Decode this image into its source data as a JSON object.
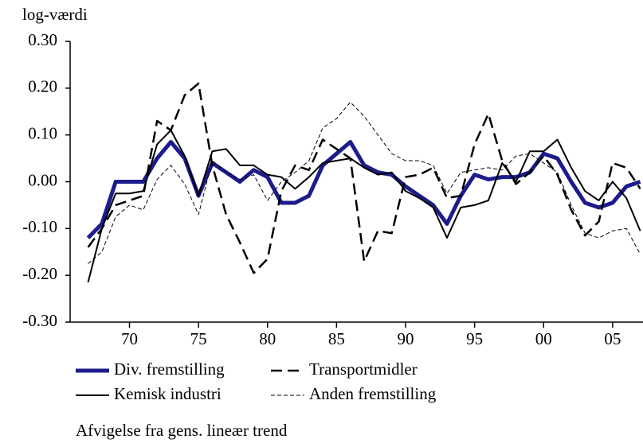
{
  "chart_data": {
    "type": "line",
    "y_label": "log-værdi",
    "note": "Afvigelse fra gens. lineær trend",
    "x": [
      1967,
      1968,
      1969,
      1970,
      1971,
      1972,
      1973,
      1974,
      1975,
      1976,
      1977,
      1978,
      1979,
      1980,
      1981,
      1982,
      1983,
      1984,
      1985,
      1986,
      1987,
      1988,
      1989,
      1990,
      1991,
      1992,
      1993,
      1994,
      1995,
      1996,
      1997,
      1998,
      1999,
      2000,
      2001,
      2002,
      2003,
      2004,
      2005,
      2006,
      2007
    ],
    "xlim": [
      1965.7,
      2007.2
    ],
    "xticks": [
      {
        "value": 1970,
        "label": "70"
      },
      {
        "value": 1975,
        "label": "75"
      },
      {
        "value": 1980,
        "label": "80"
      },
      {
        "value": 1985,
        "label": "85"
      },
      {
        "value": 1990,
        "label": "90"
      },
      {
        "value": 1995,
        "label": "95"
      },
      {
        "value": 2000,
        "label": "00"
      },
      {
        "value": 2005,
        "label": "05"
      }
    ],
    "ylim": [
      -0.3,
      0.3
    ],
    "yticks": [
      {
        "value": -0.3,
        "label": "-0.30"
      },
      {
        "value": -0.2,
        "label": "-0.20"
      },
      {
        "value": -0.1,
        "label": "-0.10"
      },
      {
        "value": 0,
        "label": "0.00"
      },
      {
        "value": 0.1,
        "label": "0.10"
      },
      {
        "value": 0.2,
        "label": "0.20"
      },
      {
        "value": 0.3,
        "label": "0.30"
      }
    ],
    "series": [
      {
        "name": "Div. fremstilling",
        "color": "#1c1c8c",
        "width": 5,
        "dash": "none",
        "values": [
          -0.12,
          -0.09,
          0.0,
          0.0,
          0.0,
          0.05,
          0.085,
          0.05,
          -0.03,
          0.04,
          0.02,
          0.0,
          0.025,
          0.01,
          -0.045,
          -0.045,
          -0.03,
          0.035,
          0.06,
          0.085,
          0.035,
          0.02,
          0.015,
          -0.01,
          -0.03,
          -0.05,
          -0.09,
          -0.03,
          0.015,
          0.005,
          0.01,
          0.01,
          0.02,
          0.06,
          0.05,
          0.0,
          -0.045,
          -0.055,
          -0.045,
          -0.01,
          0.0
        ]
      },
      {
        "name": "Transportmidler",
        "color": "#000000",
        "width": 2.5,
        "dash": "14 7",
        "values": [
          -0.14,
          -0.1,
          -0.05,
          -0.04,
          -0.03,
          0.13,
          0.11,
          0.185,
          0.21,
          0.035,
          -0.07,
          -0.13,
          -0.195,
          -0.165,
          -0.02,
          0.035,
          0.025,
          0.09,
          0.07,
          0.05,
          -0.17,
          -0.105,
          -0.11,
          0.01,
          0.015,
          0.03,
          -0.035,
          -0.03,
          0.08,
          0.145,
          0.045,
          -0.005,
          0.02,
          0.055,
          0.015,
          -0.06,
          -0.115,
          -0.085,
          0.04,
          0.03,
          -0.015
        ]
      },
      {
        "name": "Kemisk industri",
        "color": "#000000",
        "width": 2,
        "dash": "none",
        "values": [
          -0.215,
          -0.1,
          -0.025,
          -0.025,
          -0.02,
          0.08,
          0.11,
          0.055,
          -0.03,
          0.065,
          0.07,
          0.035,
          0.035,
          0.015,
          0.01,
          -0.015,
          0.01,
          0.04,
          0.045,
          0.05,
          0.03,
          0.015,
          0.02,
          -0.02,
          -0.035,
          -0.055,
          -0.12,
          -0.055,
          -0.05,
          -0.04,
          0.04,
          0.0,
          0.065,
          0.065,
          0.09,
          0.03,
          -0.02,
          -0.04,
          0.0,
          -0.035,
          -0.105
        ]
      },
      {
        "name": "Anden fremstilling",
        "color": "#000000",
        "width": 1,
        "dash": "5 3",
        "values": [
          -0.175,
          -0.15,
          -0.075,
          -0.05,
          -0.06,
          0.005,
          0.035,
          -0.005,
          -0.07,
          0.045,
          0.02,
          0.005,
          0.015,
          -0.04,
          0.0,
          0.02,
          0.045,
          0.115,
          0.135,
          0.17,
          0.14,
          0.1,
          0.06,
          0.045,
          0.045,
          0.035,
          -0.025,
          0.02,
          0.025,
          0.03,
          0.025,
          0.055,
          0.06,
          0.04,
          0.02,
          -0.05,
          -0.11,
          -0.12,
          -0.105,
          -0.1,
          -0.155
        ]
      }
    ]
  }
}
